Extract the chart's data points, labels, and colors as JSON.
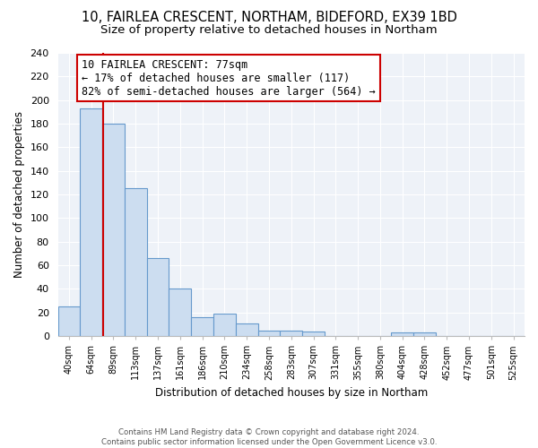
{
  "title": "10, FAIRLEA CRESCENT, NORTHAM, BIDEFORD, EX39 1BD",
  "subtitle": "Size of property relative to detached houses in Northam",
  "xlabel": "Distribution of detached houses by size in Northam",
  "ylabel": "Number of detached properties",
  "bin_labels": [
    "40sqm",
    "64sqm",
    "89sqm",
    "113sqm",
    "137sqm",
    "161sqm",
    "186sqm",
    "210sqm",
    "234sqm",
    "258sqm",
    "283sqm",
    "307sqm",
    "331sqm",
    "355sqm",
    "380sqm",
    "404sqm",
    "428sqm",
    "452sqm",
    "477sqm",
    "501sqm",
    "525sqm"
  ],
  "bar_values": [
    25,
    193,
    180,
    125,
    66,
    40,
    16,
    19,
    11,
    5,
    5,
    4,
    0,
    0,
    0,
    3,
    3,
    0,
    0,
    0,
    0
  ],
  "bar_color": "#ccddf0",
  "bar_edge_color": "#6699cc",
  "vline_color": "#cc0000",
  "vline_x": 1.52,
  "annotation_text": "10 FAIRLEA CRESCENT: 77sqm\n← 17% of detached houses are smaller (117)\n82% of semi-detached houses are larger (564) →",
  "annotation_box_edge": "#cc0000",
  "annotation_box_fill": "white",
  "ylim": [
    0,
    240
  ],
  "yticks": [
    0,
    20,
    40,
    60,
    80,
    100,
    120,
    140,
    160,
    180,
    200,
    220,
    240
  ],
  "bg_color": "#eef2f8",
  "grid_color": "#ffffff",
  "footer_text": "Contains HM Land Registry data © Crown copyright and database right 2024.\nContains public sector information licensed under the Open Government Licence v3.0.",
  "title_fontsize": 10.5,
  "subtitle_fontsize": 9.5,
  "annotation_fontsize": 8.5,
  "ylabel_fontsize": 8.5,
  "xlabel_fontsize": 8.5
}
